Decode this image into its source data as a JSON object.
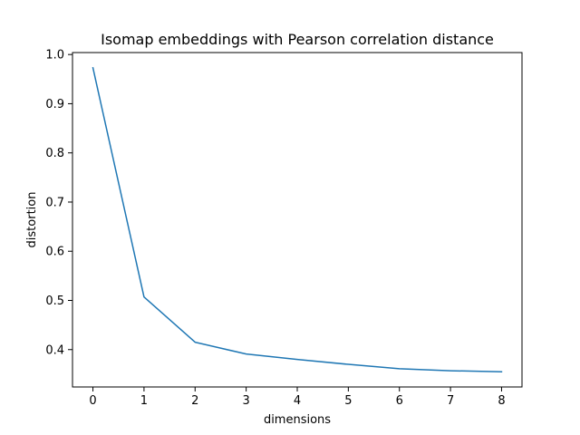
{
  "chart_data": {
    "type": "line",
    "title": "Isomap embeddings with Pearson correlation distance",
    "xlabel": "dimensions",
    "ylabel": "distortion",
    "x": [
      0,
      1,
      2,
      3,
      4,
      5,
      6,
      7,
      8
    ],
    "series": [
      {
        "color": "#1f77b4",
        "values": [
          0.973,
          0.507,
          0.415,
          0.391,
          0.38,
          0.37,
          0.361,
          0.357,
          0.355
        ]
      }
    ],
    "xlim": [
      -0.4,
      8.4
    ],
    "ylim": [
      0.324,
      1.004
    ],
    "xticks": [
      0,
      1,
      2,
      3,
      4,
      5,
      6,
      7,
      8
    ],
    "yticks": [
      0.4,
      0.5,
      0.6,
      0.7,
      0.8,
      0.9,
      1.0
    ],
    "xtick_labels": [
      "0",
      "1",
      "2",
      "3",
      "4",
      "5",
      "6",
      "7",
      "8"
    ],
    "ytick_labels": [
      "0.4",
      "0.5",
      "0.6",
      "0.7",
      "0.8",
      "0.9",
      "1.0"
    ],
    "grid": false,
    "legend": "none"
  }
}
